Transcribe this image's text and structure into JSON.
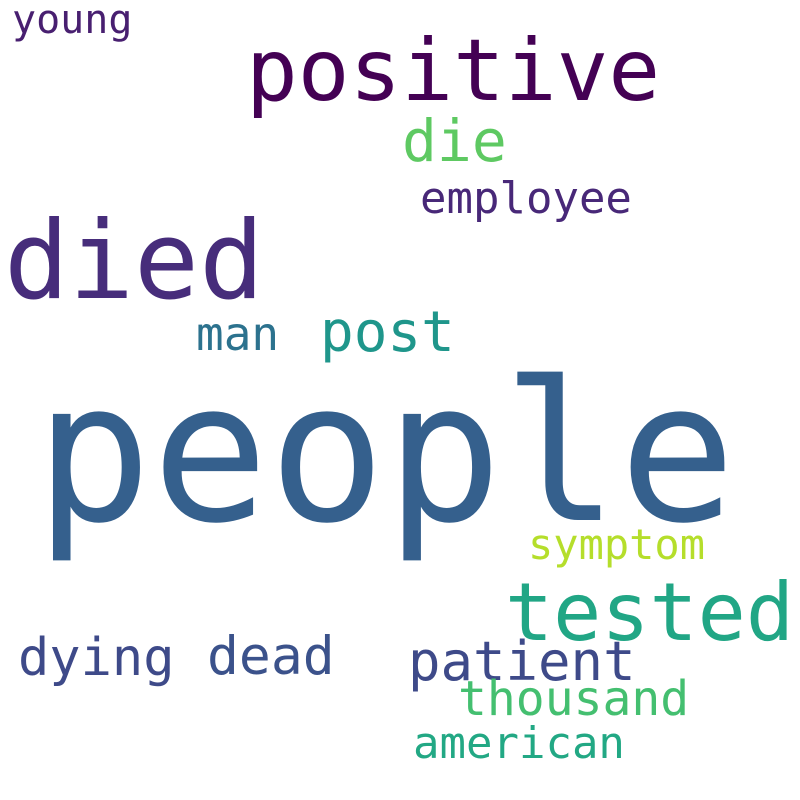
{
  "words": {
    "people": {
      "text": "people",
      "color": "#35608d"
    },
    "died": {
      "text": "died",
      "color": "#472d7b"
    },
    "positive": {
      "text": "positive",
      "color": "#440154"
    },
    "tested": {
      "text": "tested",
      "color": "#21a685"
    },
    "post": {
      "text": "post",
      "color": "#1f968b"
    },
    "die": {
      "text": "die",
      "color": "#5ec962"
    },
    "patient": {
      "text": "patient",
      "color": "#3e4a89"
    },
    "dead": {
      "text": "dead",
      "color": "#3b528b"
    },
    "dying": {
      "text": "dying",
      "color": "#3e4a89"
    },
    "thousand": {
      "text": "thousand",
      "color": "#44bf70"
    },
    "employee": {
      "text": "employee",
      "color": "#482878"
    },
    "man": {
      "text": "man",
      "color": "#2c728e"
    },
    "american": {
      "text": "american",
      "color": "#22a884"
    },
    "symptom": {
      "text": "symptom",
      "color": "#b5de2b"
    },
    "young": {
      "text": "young",
      "color": "#481f70"
    }
  }
}
